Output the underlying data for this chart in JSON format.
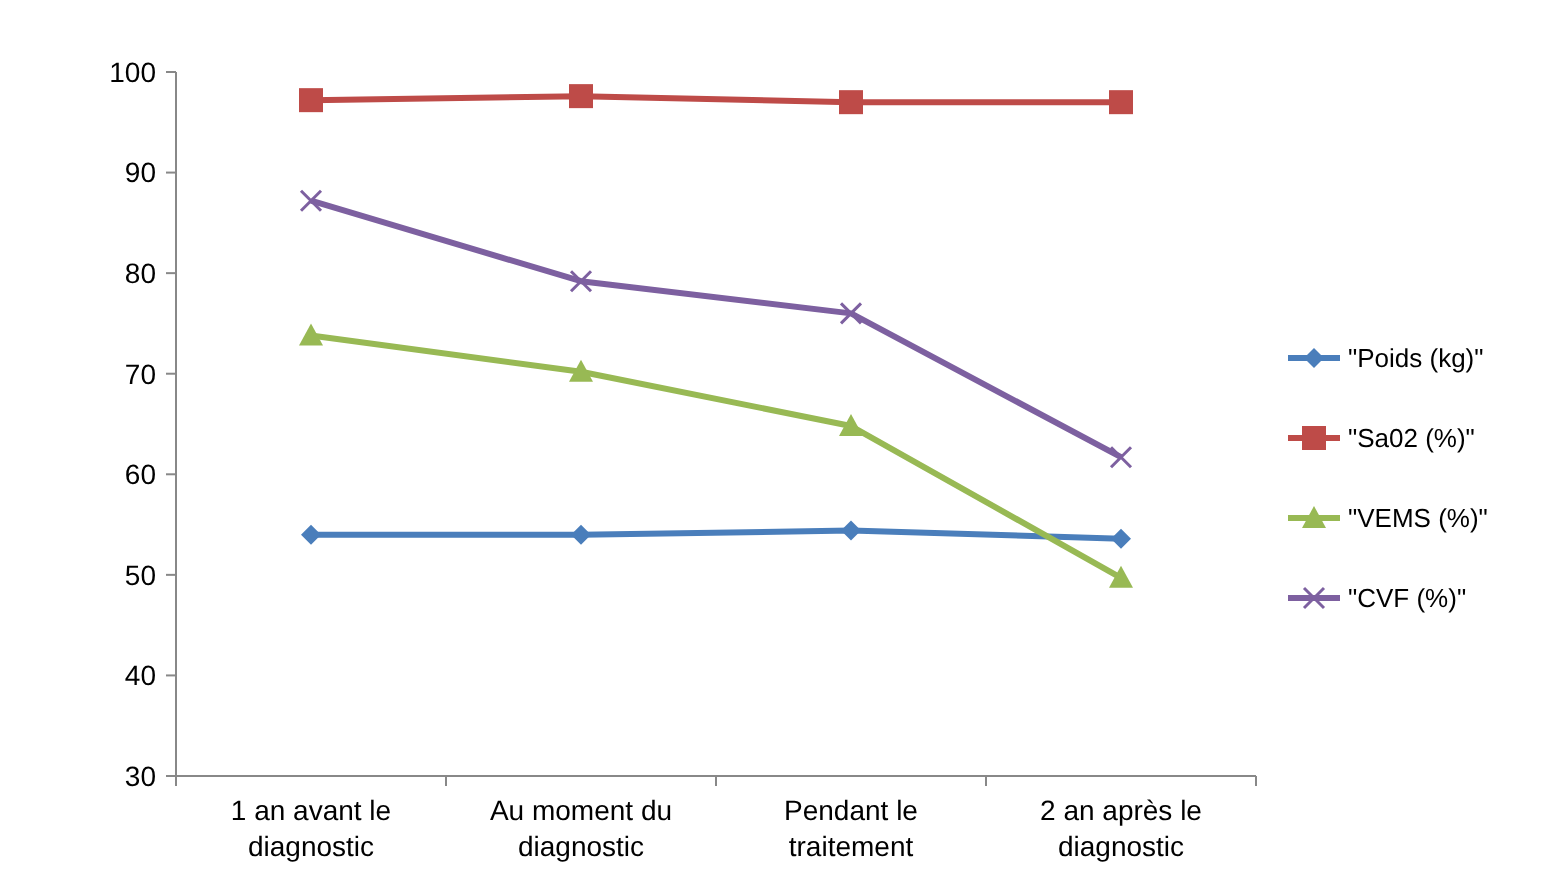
{
  "chart_data": {
    "type": "line",
    "categories": [
      "1 an avant le diagnostic",
      "Au moment du diagnostic",
      "Pendant le traitement",
      "2 an après le diagnostic"
    ],
    "series": [
      {
        "name": "\"Poids (kg)\"",
        "color": "#4a7ebb",
        "marker": "diamond",
        "values": [
          54,
          54,
          54.4,
          53.6
        ]
      },
      {
        "name": "\"Sa02 (%)\"",
        "color": "#be4b48",
        "marker": "square",
        "values": [
          97.2,
          97.6,
          97,
          97
        ]
      },
      {
        "name": "\"VEMS (%)\"",
        "color": "#98b954",
        "marker": "triangle",
        "values": [
          73.8,
          70.2,
          64.8,
          49.7
        ]
      },
      {
        "name": "\"CVF (%)\"",
        "color": "#7d60a0",
        "marker": "cross",
        "values": [
          87.2,
          79.2,
          76,
          61.7
        ]
      }
    ],
    "ylim": [
      30,
      100
    ],
    "yticks": [
      30,
      40,
      50,
      60,
      70,
      80,
      90,
      100
    ],
    "grid": false,
    "legend": "right",
    "line_style": "solid"
  }
}
